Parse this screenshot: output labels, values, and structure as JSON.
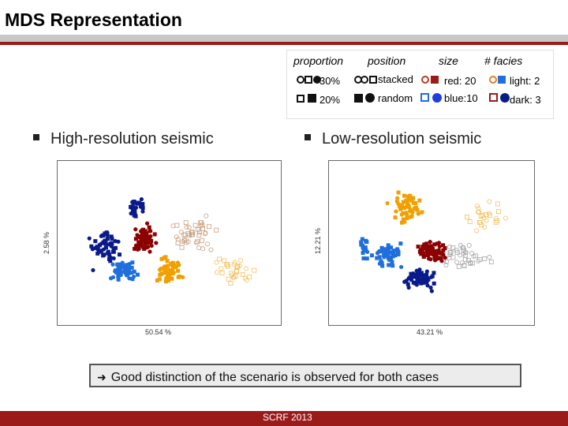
{
  "slide": {
    "title": "MDS Representation",
    "footer": "SCRF 2013"
  },
  "legend": {
    "headers": {
      "proportion": "proportion",
      "position": "position",
      "size": "size",
      "facies": "# facies"
    },
    "proportion": [
      "30%",
      "20%"
    ],
    "position": [
      "stacked",
      "random"
    ],
    "size": [
      "red: 20",
      "blue:10"
    ],
    "facies": [
      "light: 2",
      "dark: 3"
    ]
  },
  "bullets": {
    "left": "High-resolution seismic",
    "right": "Low-resolution seismic"
  },
  "plots": {
    "left": {
      "xlabel": "50.54 %",
      "ylabel": "2.58 %"
    },
    "right": {
      "xlabel": "43.21 %",
      "ylabel": "12.21 %"
    }
  },
  "conclusion": "Good distinction of the scenario is observed for both cases",
  "colors": {
    "red": "#8b0000",
    "blue": "#1f6fdc",
    "navy": "#0a1a8a",
    "orange": "#f0a000",
    "accent": "#9b1b1b"
  }
}
